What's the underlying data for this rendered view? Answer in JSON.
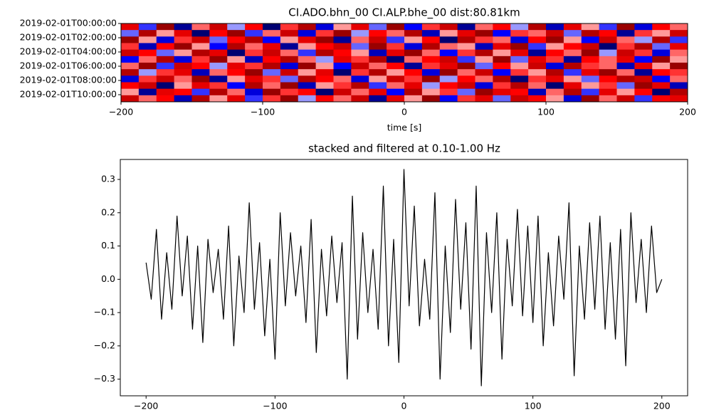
{
  "chart_data": [
    {
      "type": "heatmap",
      "title": "CI.ADO.bhn_00 CI.ALP.bhe_00  dist:80.81km",
      "xlabel": "time [s]",
      "categories": [
        "2019-02-01T00:00:00",
        null,
        "2019-02-01T02:00:00",
        null,
        "2019-02-01T04:00:00",
        null,
        "2019-02-01T06:00:00",
        null,
        "2019-02-01T08:00:00",
        null,
        "2019-02-01T10:00:00",
        null
      ],
      "xlim": [
        -200,
        200
      ],
      "xticks": [
        {
          "value": -200,
          "label": "−200"
        },
        {
          "value": -100,
          "label": "−100"
        },
        0,
        100,
        200
      ],
      "colormap": "seismic",
      "values": [
        [
          0.6,
          -0.4,
          0.9,
          -0.8,
          0.3,
          0.7,
          -0.2,
          0.5,
          -0.9,
          0.4,
          0.8,
          -0.6,
          0.2,
          0.6,
          -0.3,
          0.9,
          -0.5,
          0.4,
          0.7,
          -0.8,
          0.3,
          0.5,
          -0.2,
          0.8,
          -0.7,
          0.6,
          0.2,
          -0.4,
          0.9,
          -0.6,
          0.5,
          0.3
        ],
        [
          -0.3,
          0.8,
          0.2,
          0.6,
          -0.9,
          0.5,
          0.9,
          -0.4,
          0.3,
          0.7,
          -0.6,
          0.4,
          0.9,
          -0.2,
          0.5,
          0.3,
          0.8,
          -0.7,
          0.2,
          0.6,
          0.9,
          -0.5,
          0.4,
          0.3,
          0.7,
          -0.3,
          0.8,
          0.5,
          -0.8,
          0.4,
          0.2,
          0.7
        ],
        [
          0.9,
          0.2,
          -0.6,
          0.4,
          0.7,
          -0.3,
          0.5,
          0.8,
          -0.5,
          0.2,
          0.6,
          0.9,
          -0.8,
          0.3,
          0.7,
          -0.4,
          0.2,
          0.5,
          -0.9,
          0.8,
          0.4,
          0.3,
          -0.6,
          0.5,
          0.9,
          0.2,
          -0.5,
          0.7,
          0.3,
          -0.2,
          0.8,
          -0.4
        ],
        [
          0.4,
          -0.7,
          0.5,
          0.9,
          0.2,
          -0.5,
          0.8,
          0.3,
          0.6,
          -0.8,
          0.2,
          0.5,
          0.7,
          -0.3,
          0.9,
          0.4,
          -0.6,
          0.8,
          0.3,
          0.2,
          -0.7,
          0.6,
          0.9,
          -0.4,
          0.2,
          0.5,
          0.7,
          -0.9,
          0.4,
          0.8,
          -0.3,
          0.6
        ],
        [
          0.7,
          0.5,
          -0.3,
          0.2,
          0.8,
          0.6,
          -0.9,
          0.4,
          0.7,
          0.3,
          -0.4,
          0.8,
          0.5,
          0.2,
          -0.7,
          0.6,
          0.9,
          0.3,
          -0.5,
          0.4,
          0.8,
          0.2,
          0.6,
          -0.8,
          0.5,
          0.3,
          0.9,
          -0.2,
          0.7,
          0.4,
          -0.6,
          0.3
        ],
        [
          -0.5,
          0.3,
          0.8,
          -0.6,
          0.4,
          0.9,
          0.2,
          -0.7,
          0.5,
          0.8,
          0.3,
          -0.2,
          0.6,
          0.4,
          0.8,
          -0.9,
          0.3,
          0.5,
          0.7,
          -0.4,
          0.2,
          0.9,
          -0.3,
          0.6,
          0.4,
          -0.8,
          0.5,
          0.3,
          0.6,
          -0.5,
          0.9,
          0.2
        ],
        [
          0.3,
          0.9,
          -0.4,
          0.7,
          0.5,
          -0.2,
          0.6,
          0.4,
          0.8,
          -0.6,
          0.9,
          0.2,
          -0.5,
          0.7,
          0.3,
          0.5,
          -0.8,
          0.4,
          0.6,
          0.9,
          -0.3,
          0.5,
          0.2,
          0.7,
          -0.6,
          0.8,
          0.4,
          0.3,
          -0.7,
          0.6,
          0.2,
          0.9
        ],
        [
          0.8,
          -0.2,
          0.4,
          0.6,
          -0.7,
          0.3,
          0.5,
          0.9,
          -0.3,
          0.7,
          0.2,
          0.6,
          -0.9,
          0.4,
          0.8,
          0.2,
          0.5,
          -0.6,
          0.9,
          0.3,
          0.7,
          -0.5,
          0.4,
          0.2,
          0.8,
          -0.4,
          0.6,
          0.9,
          0.3,
          -0.8,
          0.5,
          0.4
        ],
        [
          -0.6,
          0.4,
          0.7,
          0.3,
          0.9,
          -0.8,
          0.2,
          0.6,
          0.4,
          -0.3,
          0.8,
          0.5,
          0.3,
          -0.6,
          0.2,
          0.7,
          0.4,
          0.9,
          -0.2,
          0.5,
          0.3,
          0.8,
          -0.9,
          0.4,
          0.6,
          0.2,
          -0.3,
          0.5,
          0.8,
          0.7,
          -0.5,
          0.3
        ],
        [
          0.5,
          0.7,
          -0.9,
          0.2,
          0.6,
          0.4,
          -0.5,
          0.8,
          0.3,
          0.9,
          -0.7,
          0.2,
          0.4,
          0.8,
          -0.4,
          0.3,
          0.6,
          -0.2,
          0.5,
          0.7,
          -0.6,
          0.4,
          0.8,
          0.3,
          -0.9,
          0.6,
          0.2,
          0.4,
          -0.3,
          0.9,
          0.6,
          -0.7
        ],
        [
          0.2,
          -0.8,
          0.6,
          0.5,
          -0.4,
          0.8,
          0.3,
          -0.6,
          0.9,
          0.4,
          0.5,
          -0.9,
          0.7,
          0.3,
          0.6,
          -0.5,
          0.8,
          0.2,
          0.4,
          -0.3,
          0.9,
          0.6,
          0.5,
          -0.7,
          0.3,
          0.8,
          -0.4,
          0.6,
          0.2,
          0.5,
          -0.9,
          0.8
        ],
        [
          0.7,
          0.3,
          0.5,
          -0.7,
          0.8,
          0.2,
          0.6,
          -0.4,
          0.4,
          0.9,
          -0.2,
          0.5,
          0.3,
          0.7,
          -0.8,
          0.6,
          0.2,
          0.9,
          -0.5,
          0.4,
          0.6,
          -0.3,
          0.7,
          0.5,
          0.2,
          -0.6,
          0.9,
          0.3,
          0.7,
          -0.4,
          0.5,
          0.6
        ]
      ]
    },
    {
      "type": "line",
      "title": "stacked and filtered at 0.10-1.00 Hz",
      "x": [
        -200,
        -196,
        -192,
        -188,
        -184,
        -180,
        -176,
        -172,
        -168,
        -164,
        -160,
        -156,
        -152,
        -148,
        -144,
        -140,
        -136,
        -132,
        -128,
        -124,
        -120,
        -116,
        -112,
        -108,
        -104,
        -100,
        -96,
        -92,
        -88,
        -84,
        -80,
        -76,
        -72,
        -68,
        -64,
        -60,
        -56,
        -52,
        -48,
        -44,
        -40,
        -36,
        -32,
        -28,
        -24,
        -20,
        -16,
        -12,
        -8,
        -4,
        0,
        4,
        8,
        12,
        16,
        20,
        24,
        28,
        32,
        36,
        40,
        44,
        48,
        52,
        56,
        60,
        64,
        68,
        72,
        76,
        80,
        84,
        88,
        92,
        96,
        100,
        104,
        108,
        112,
        116,
        120,
        124,
        128,
        132,
        136,
        140,
        144,
        148,
        152,
        156,
        160,
        164,
        168,
        172,
        176,
        180,
        184,
        188,
        192,
        196,
        200
      ],
      "series": [
        {
          "color": "#000000",
          "values": [
            0.05,
            -0.06,
            0.15,
            -0.12,
            0.08,
            -0.09,
            0.19,
            -0.05,
            0.13,
            -0.15,
            0.1,
            -0.19,
            0.12,
            -0.04,
            0.09,
            -0.12,
            0.16,
            -0.2,
            0.07,
            -0.1,
            0.23,
            -0.09,
            0.11,
            -0.17,
            0.06,
            -0.24,
            0.2,
            -0.08,
            0.14,
            -0.05,
            0.1,
            -0.13,
            0.18,
            -0.22,
            0.09,
            -0.11,
            0.13,
            -0.07,
            0.11,
            -0.3,
            0.25,
            -0.18,
            0.14,
            -0.1,
            0.09,
            -0.15,
            0.28,
            -0.2,
            0.12,
            -0.25,
            0.33,
            -0.08,
            0.22,
            -0.14,
            0.06,
            -0.12,
            0.26,
            -0.3,
            0.1,
            -0.16,
            0.24,
            -0.09,
            0.17,
            -0.21,
            0.28,
            -0.32,
            0.14,
            -0.1,
            0.2,
            -0.24,
            0.12,
            -0.08,
            0.21,
            -0.11,
            0.16,
            -0.13,
            0.19,
            -0.2,
            0.08,
            -0.14,
            0.13,
            -0.06,
            0.23,
            -0.29,
            0.1,
            -0.12,
            0.17,
            -0.09,
            0.19,
            -0.15,
            0.11,
            -0.18,
            0.15,
            -0.26,
            0.2,
            -0.07,
            0.12,
            -0.1,
            0.16,
            -0.04,
            0.0
          ]
        }
      ],
      "xlim": [
        -220,
        220
      ],
      "ylim": [
        -0.35,
        0.36
      ],
      "xticks": [
        {
          "value": -200,
          "label": "−200"
        },
        {
          "value": -100,
          "label": "−100"
        },
        0,
        100,
        200
      ],
      "yticks": [
        {
          "value": -0.3,
          "label": "−0.3"
        },
        {
          "value": -0.2,
          "label": "−0.2"
        },
        {
          "value": -0.1,
          "label": "−0.1"
        },
        {
          "value": 0,
          "label": "0.0"
        },
        0.1,
        0.2,
        0.3
      ]
    }
  ]
}
